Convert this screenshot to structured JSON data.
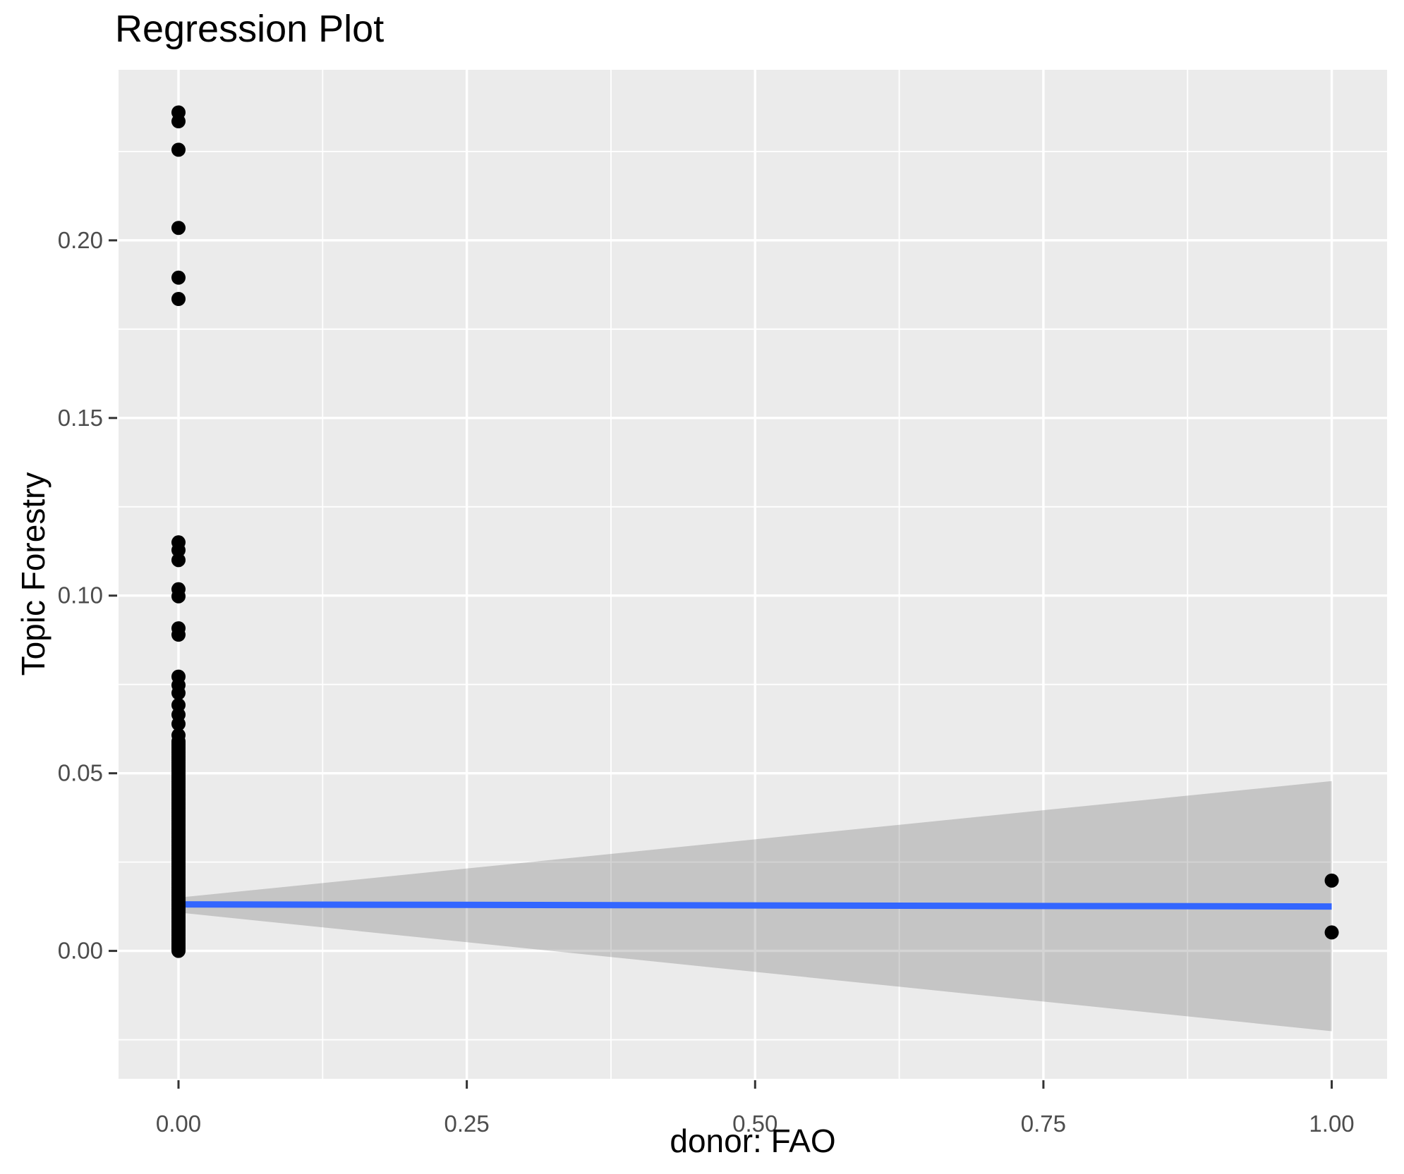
{
  "chart_data": {
    "type": "scatter",
    "title": "Regression Plot",
    "xlabel": "donor: FAO",
    "ylabel": "Topic Forestry",
    "xlim": [
      -0.052,
      1.048
    ],
    "ylim": [
      -0.036,
      0.248
    ],
    "grid": true,
    "legend_position": "none",
    "x_axis": {
      "tick_values": [
        0.0,
        0.25,
        0.5,
        0.75,
        1.0
      ],
      "tick_labels": [
        "0.00",
        "0.25",
        "0.50",
        "0.75",
        "1.00"
      ],
      "minor_gridlines": [
        0.125,
        0.375,
        0.625,
        0.875
      ]
    },
    "y_axis": {
      "tick_values": [
        0.0,
        0.05,
        0.1,
        0.15,
        0.2
      ],
      "tick_labels": [
        "0.00",
        "0.05",
        "0.10",
        "0.15",
        "0.20"
      ],
      "minor_gridlines": [
        -0.025,
        0.025,
        0.075,
        0.125,
        0.175,
        0.225
      ]
    },
    "points": {
      "x0_isolated_y": [
        0.236,
        0.2335,
        0.2255,
        0.2035,
        0.1895,
        0.1835,
        0.115,
        0.1128,
        0.11,
        0.1018,
        0.0998,
        0.0908,
        0.089,
        0.0772,
        0.0748,
        0.0726,
        0.0692,
        0.0665,
        0.0639,
        0.0607
      ],
      "x0_dense": {
        "x": 0,
        "y_min": 0.0,
        "y_max": 0.059,
        "count": 110
      },
      "x1_y": [
        0.0198,
        0.0052
      ]
    },
    "regression_line": {
      "x": [
        0,
        1
      ],
      "y": [
        0.0131,
        0.0125
      ]
    },
    "confidence_band": {
      "x": [
        0,
        1
      ],
      "upper": [
        0.015,
        0.0478
      ],
      "lower": [
        0.0108,
        -0.0226
      ]
    },
    "colors": {
      "page_background": "#FFFFFF",
      "panel_background": "#EBEBEB",
      "gridline": "#FFFFFF",
      "point": "#000000",
      "regression_line": "#3366FF",
      "confidence_band": "rgba(102,102,102,0.28)",
      "tick_mark": "#333333",
      "tick_label": "#4D4D4D",
      "title_color": "#000000"
    }
  }
}
